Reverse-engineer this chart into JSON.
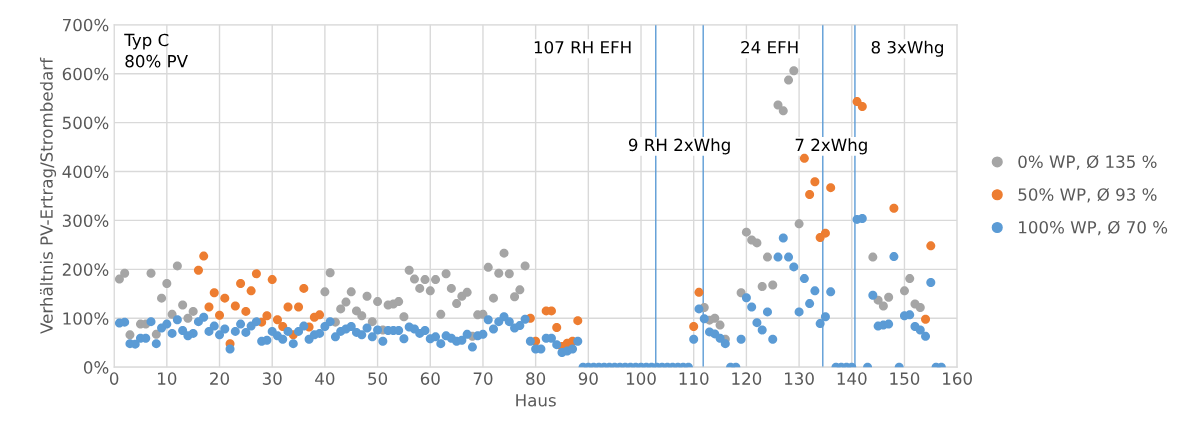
{
  "chart_data": {
    "type": "scatter",
    "xlabel": "Haus",
    "ylabel": "Verhältnis PV-Ertrag/Strombedarf",
    "xlim": [
      0,
      160
    ],
    "xticks": [
      0,
      10,
      20,
      30,
      40,
      50,
      60,
      70,
      80,
      90,
      100,
      110,
      120,
      130,
      140,
      150,
      160
    ],
    "ylim": [
      0,
      700
    ],
    "yticks": [
      {
        "value": 0,
        "label": "0%"
      },
      {
        "value": 100,
        "label": "100%"
      },
      {
        "value": 200,
        "label": "200%"
      },
      {
        "value": 300,
        "label": "300%"
      },
      {
        "value": 400,
        "label": "400%"
      },
      {
        "value": 500,
        "label": "500%"
      },
      {
        "value": 600,
        "label": "600%"
      },
      {
        "value": 700,
        "label": "700%"
      }
    ],
    "grid": true,
    "legend": "right",
    "marker": "circle",
    "series": [
      {
        "name": "0% WP, Ø 135 %",
        "color": "#a5a5a5",
        "x": [
          1,
          2,
          3,
          5,
          6,
          7,
          8,
          9,
          10,
          11,
          12,
          13,
          14,
          15,
          40,
          41,
          42,
          43,
          44,
          45,
          46,
          47,
          48,
          49,
          50,
          51,
          52,
          53,
          54,
          55,
          56,
          57,
          58,
          59,
          60,
          61,
          62,
          63,
          64,
          65,
          66,
          67,
          68,
          69,
          70,
          71,
          72,
          73,
          74,
          75,
          76,
          77,
          78,
          112,
          113,
          114,
          115,
          116,
          119,
          120,
          121,
          122,
          123,
          124,
          125,
          126,
          127,
          128,
          129,
          130,
          144,
          145,
          146,
          147,
          150,
          151,
          152,
          153
        ],
        "values": [
          180,
          192,
          66,
          88,
          88,
          192,
          67,
          141,
          171,
          108,
          207,
          127,
          100,
          114,
          154,
          193,
          92,
          119,
          133,
          154,
          115,
          105,
          145,
          93,
          134,
          76,
          127,
          129,
          134,
          103,
          198,
          180,
          161,
          179,
          156,
          179,
          108,
          191,
          161,
          130,
          145,
          153,
          63,
          107,
          108,
          204,
          141,
          192,
          233,
          191,
          144,
          158,
          207,
          122,
          96,
          100,
          86,
          57,
          152,
          276,
          260,
          254,
          165,
          225,
          168,
          536,
          524,
          587,
          606,
          293,
          225,
          137,
          125,
          143,
          156,
          181,
          129,
          122
        ]
      },
      {
        "name": "50% WP, Ø 93 %",
        "color": "#ed7d31",
        "x": [
          16,
          17,
          18,
          19,
          20,
          21,
          22,
          23,
          24,
          25,
          26,
          27,
          28,
          29,
          30,
          31,
          32,
          33,
          34,
          35,
          36,
          37,
          38,
          39,
          79,
          80,
          82,
          83,
          84,
          85,
          86,
          87,
          88,
          110,
          111,
          131,
          132,
          133,
          134,
          135,
          136,
          141,
          142,
          148,
          154,
          155
        ],
        "values": [
          198,
          227,
          123,
          152,
          106,
          141,
          48,
          125,
          171,
          114,
          156,
          191,
          92,
          105,
          179,
          97,
          83,
          123,
          66,
          123,
          161,
          82,
          102,
          107,
          100,
          53,
          115,
          115,
          81,
          42,
          49,
          53,
          95,
          83,
          153,
          427,
          353,
          379,
          265,
          274,
          367,
          543,
          533,
          325,
          98,
          248
        ]
      },
      {
        "name": "100% WP, Ø 70 %",
        "color": "#5b9bd5",
        "x": [
          1,
          2,
          3,
          4,
          5,
          6,
          7,
          8,
          9,
          10,
          11,
          12,
          13,
          14,
          15,
          16,
          17,
          18,
          19,
          20,
          21,
          22,
          23,
          24,
          25,
          26,
          27,
          28,
          29,
          30,
          31,
          32,
          33,
          34,
          35,
          36,
          37,
          38,
          39,
          40,
          41,
          42,
          43,
          44,
          45,
          46,
          47,
          48,
          49,
          50,
          51,
          52,
          53,
          54,
          55,
          56,
          57,
          58,
          59,
          60,
          61,
          62,
          63,
          64,
          65,
          66,
          67,
          68,
          69,
          70,
          71,
          72,
          73,
          74,
          75,
          76,
          77,
          78,
          79,
          80,
          81,
          82,
          83,
          84,
          85,
          86,
          87,
          88,
          89,
          90,
          91,
          92,
          93,
          94,
          95,
          96,
          97,
          98,
          99,
          100,
          101,
          102,
          103,
          104,
          105,
          106,
          107,
          108,
          109,
          110,
          111,
          112,
          113,
          114,
          115,
          116,
          117,
          118,
          119,
          120,
          121,
          122,
          123,
          124,
          125,
          126,
          127,
          128,
          129,
          130,
          131,
          132,
          133,
          134,
          135,
          136,
          137,
          138,
          139,
          140,
          141,
          142,
          143,
          144,
          145,
          146,
          147,
          148,
          149,
          150,
          151,
          152,
          153,
          154,
          155,
          156,
          157
        ],
        "values": [
          90,
          92,
          48,
          47,
          59,
          59,
          93,
          48,
          80,
          88,
          69,
          97,
          75,
          64,
          69,
          93,
          102,
          73,
          84,
          66,
          78,
          37,
          73,
          88,
          71,
          84,
          93,
          53,
          55,
          73,
          64,
          57,
          73,
          48,
          73,
          84,
          57,
          66,
          69,
          83,
          93,
          62,
          73,
          78,
          83,
          71,
          66,
          80,
          62,
          76,
          53,
          75,
          75,
          75,
          58,
          82,
          78,
          69,
          75,
          58,
          62,
          48,
          64,
          59,
          53,
          55,
          67,
          41,
          64,
          67,
          97,
          78,
          93,
          103,
          93,
          80,
          85,
          98,
          53,
          37,
          37,
          59,
          59,
          46,
          30,
          33,
          37,
          53,
          0,
          0,
          0,
          0,
          0,
          0,
          0,
          0,
          0,
          0,
          0,
          0,
          0,
          0,
          0,
          0,
          0,
          0,
          0,
          0,
          0,
          57,
          119,
          99,
          72,
          68,
          59,
          48,
          0,
          0,
          57,
          142,
          123,
          91,
          76,
          113,
          57,
          225,
          264,
          225,
          205,
          113,
          181,
          130,
          156,
          89,
          103,
          154,
          0,
          0,
          0,
          0,
          302,
          304,
          0,
          147,
          84,
          86,
          88,
          226,
          0,
          105,
          107,
          83,
          76,
          63,
          173,
          0,
          0
        ]
      }
    ],
    "ref_lines": [
      {
        "axis": "x",
        "value": 102.8,
        "color": "#5b9bd5",
        "label": "107 RH EFH"
      },
      {
        "axis": "x",
        "value": 111.8,
        "color": "#5b9bd5",
        "label": "9 RH 2xWhg"
      },
      {
        "axis": "x",
        "value": 134.5,
        "color": "#5b9bd5",
        "label": "24 EFH"
      },
      {
        "axis": "x",
        "value": 140.6,
        "color": "#5b9bd5",
        "label": "7 2xWhg"
      }
    ],
    "annotations": [
      "Typ C\n80% PV",
      "8 3xWhg"
    ]
  }
}
